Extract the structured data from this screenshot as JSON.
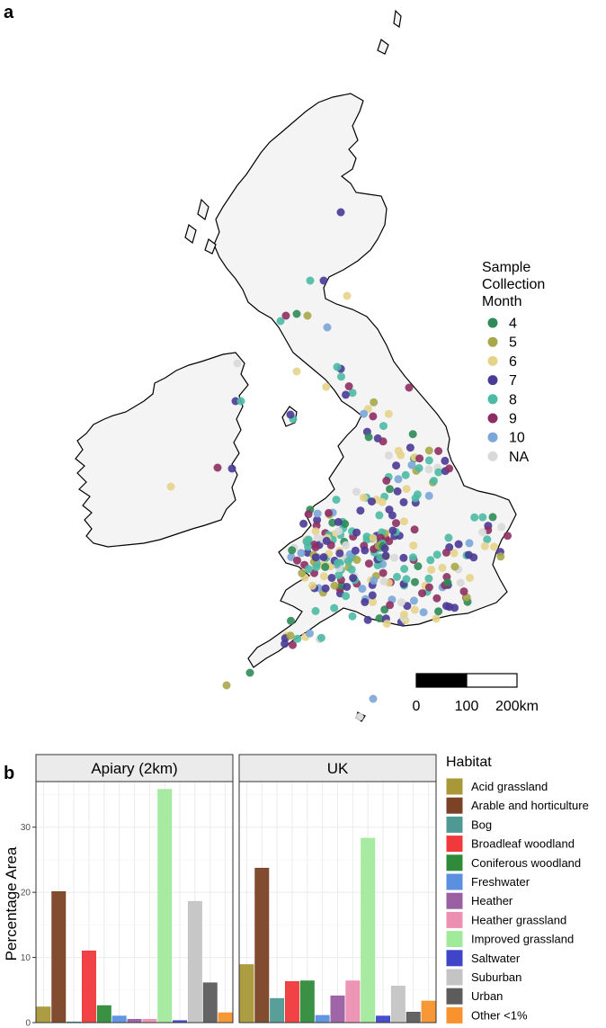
{
  "panels": {
    "a": "a",
    "b": "b"
  },
  "map": {
    "legend_title_lines": [
      "Sample",
      "Collection",
      "Month"
    ],
    "legend_items": [
      {
        "label": "4",
        "color": "#2e8b57"
      },
      {
        "label": "5",
        "color": "#a8a84a"
      },
      {
        "label": "6",
        "color": "#e6d38a"
      },
      {
        "label": "7",
        "color": "#4b3a96"
      },
      {
        "label": "8",
        "color": "#4cbaa5"
      },
      {
        "label": "9",
        "color": "#8e2f63"
      },
      {
        "label": "10",
        "color": "#7aa6d8"
      },
      {
        "label": "NA",
        "color": "#d9d9d9"
      }
    ],
    "scale_labels": [
      "0",
      "100",
      "200km"
    ]
  },
  "chart_data": {
    "type": "bar",
    "facets": [
      "Apiary (2km)",
      "UK"
    ],
    "ylabel": "Percentage Area",
    "xlabel": "",
    "ylim": [
      0,
      37
    ],
    "yticks": [
      0,
      10,
      20,
      30
    ],
    "grid": true,
    "legend_title": "Habitat",
    "legend_position": "right",
    "categories": [
      "Acid grassland",
      "Arable and horticulture",
      "Bog",
      "Broadleaf woodland",
      "Coniferous woodland",
      "Freshwater",
      "Heather",
      "Heather grassland",
      "Improved grassland",
      "Saltwater",
      "Suburban",
      "Urban",
      "Other <1%"
    ],
    "colors": [
      "#a89838",
      "#7b4226",
      "#4f9994",
      "#f0393b",
      "#2f8b3a",
      "#5b8fe0",
      "#9a5ea2",
      "#ec8fb0",
      "#a1ea9c",
      "#3f44c8",
      "#c4c4c4",
      "#5c5c5c",
      "#f7922c"
    ],
    "series": [
      {
        "name": "Apiary (2km)",
        "values": [
          2.4,
          20.1,
          0.1,
          11.0,
          2.6,
          1.0,
          0.5,
          0.5,
          35.8,
          0.3,
          18.6,
          6.1,
          1.5
        ]
      },
      {
        "name": "UK",
        "values": [
          8.9,
          23.7,
          3.7,
          6.3,
          6.4,
          1.1,
          4.1,
          6.4,
          28.3,
          1.0,
          5.6,
          1.6,
          3.3
        ]
      }
    ]
  }
}
